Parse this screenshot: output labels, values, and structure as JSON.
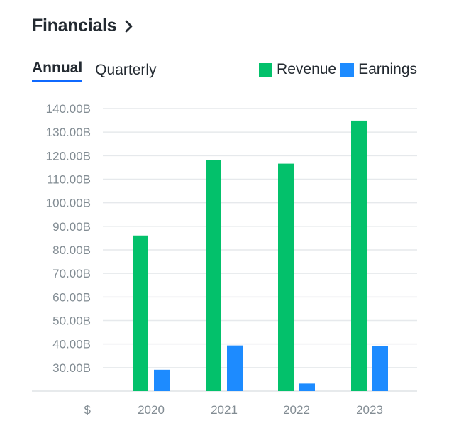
{
  "header": {
    "title": "Financials"
  },
  "tabs": [
    {
      "label": "Annual",
      "active": true
    },
    {
      "label": "Quarterly",
      "active": false
    }
  ],
  "legend": [
    {
      "label": "Revenue",
      "color": "#03c16b"
    },
    {
      "label": "Earnings",
      "color": "#1d8bff"
    }
  ],
  "chart_data": {
    "type": "bar",
    "title": "",
    "xlabel": "",
    "ylabel": "",
    "currency_label": "$",
    "categories": [
      "2020",
      "2021",
      "2022",
      "2023"
    ],
    "series": [
      {
        "name": "Revenue",
        "color": "#03c16b",
        "values": [
          86.1,
          118.0,
          116.6,
          134.9
        ]
      },
      {
        "name": "Earnings",
        "color": "#1d8bff",
        "values": [
          29.1,
          39.4,
          23.2,
          39.1
        ]
      }
    ],
    "ylim": [
      20,
      140
    ],
    "yticks": [
      30,
      40,
      50,
      60,
      70,
      80,
      90,
      100,
      110,
      120,
      130,
      140
    ],
    "ytick_labels": [
      "30.00B",
      "40.00B",
      "50.00B",
      "60.00B",
      "70.00B",
      "80.00B",
      "90.00B",
      "100.00B",
      "110.00B",
      "120.00B",
      "130.00B",
      "140.00B"
    ],
    "grid": true,
    "legend_position": "top-right"
  }
}
